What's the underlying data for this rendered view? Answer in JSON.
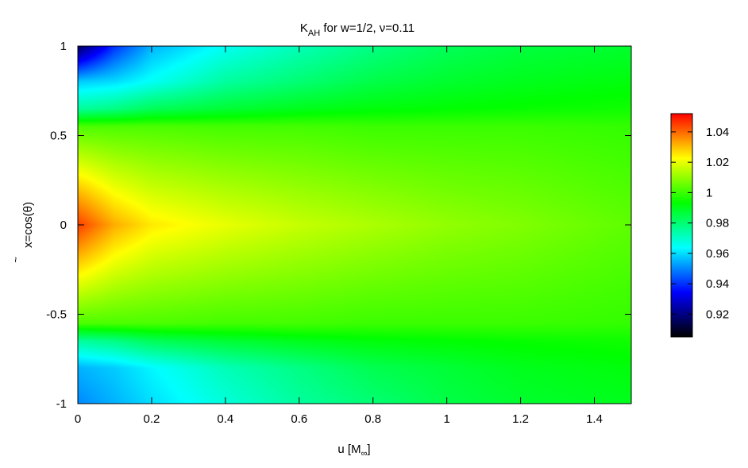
{
  "chart_data": {
    "type": "heatmap",
    "title": {
      "main": "K",
      "subscript": "AH",
      "rest": " for w=1/2, ν=0.11"
    },
    "xlabel": {
      "main": "u [M",
      "subscript": "∞",
      "close": "]"
    },
    "ylabel": {
      "tilde": "~",
      "main": "x=cos(θ)"
    },
    "xlim": [
      0,
      1.5
    ],
    "ylim": [
      -1,
      1
    ],
    "x_ticks": [
      0,
      0.2,
      0.4,
      0.6,
      0.8,
      1,
      1.2,
      1.4
    ],
    "x_tick_labels": [
      "0",
      "0.2",
      "0.4",
      "0.6",
      "0.8",
      "1",
      "1.2",
      "1.4"
    ],
    "y_ticks": [
      1,
      0.5,
      0,
      -0.5,
      -1
    ],
    "y_tick_labels": [
      "1",
      "0.5",
      "0",
      "-0.5",
      "-1"
    ],
    "colorbar": {
      "range": [
        0.905,
        1.052
      ],
      "ticks": [
        1.04,
        1.02,
        1,
        0.98,
        0.96,
        0.94,
        0.92
      ],
      "tick_labels": [
        "1.04",
        "1.02",
        "1",
        "0.98",
        "0.96",
        "0.94",
        "0.92"
      ],
      "palette": [
        "#000000",
        "#0000ff",
        "#00ffff",
        "#00ff00",
        "#ffff00",
        "#ff0000"
      ]
    },
    "field_samples": {
      "x": [
        0,
        0.1,
        0.2,
        0.4,
        0.6,
        0.8,
        1.0,
        1.2,
        1.5
      ],
      "y": [
        1,
        0.8,
        0.65,
        0.55,
        0,
        -0.55,
        -0.65,
        -0.8,
        -1
      ],
      "values": [
        [
          0.915,
          0.94,
          0.955,
          0.965,
          0.972,
          0.978,
          0.983,
          0.986,
          0.988
        ],
        [
          0.958,
          0.96,
          0.965,
          0.975,
          0.98,
          0.985,
          0.988,
          0.99,
          0.992
        ],
        [
          0.975,
          0.978,
          0.983,
          0.987,
          0.99,
          0.992,
          0.993,
          0.994,
          0.995
        ],
        [
          1.002,
          1.002,
          1.002,
          1.001,
          1.001,
          1.0,
          1.0,
          1.0,
          0.999
        ],
        [
          1.045,
          1.032,
          1.025,
          1.02,
          1.016,
          1.013,
          1.01,
          1.008,
          1.004
        ],
        [
          1.002,
          1.002,
          1.002,
          1.001,
          1.001,
          1.0,
          1.0,
          1.0,
          0.999
        ],
        [
          0.975,
          0.978,
          0.983,
          0.987,
          0.99,
          0.992,
          0.993,
          0.994,
          0.995
        ],
        [
          0.955,
          0.958,
          0.963,
          0.972,
          0.978,
          0.984,
          0.987,
          0.99,
          0.992
        ],
        [
          0.95,
          0.955,
          0.96,
          0.968,
          0.975,
          0.98,
          0.985,
          0.988,
          0.99
        ]
      ]
    }
  }
}
